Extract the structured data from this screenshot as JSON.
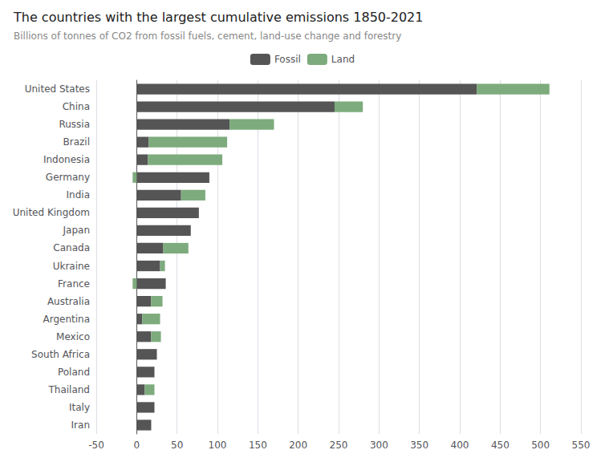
{
  "chart_data": {
    "type": "bar",
    "orientation": "horizontal",
    "stacked": true,
    "title": "The countries with the largest cumulative emissions 1850-2021",
    "subtitle": "Billions of tonnes of CO2 from fossil fuels, cement, land-use change and forestry",
    "categories": [
      "United States",
      "China",
      "Russia",
      "Brazil",
      "Indonesia",
      "Germany",
      "India",
      "United Kingdom",
      "Japan",
      "Canada",
      "Ukraine",
      "France",
      "Australia",
      "Argentina",
      "Mexico",
      "South Africa",
      "Poland",
      "Thailand",
      "Italy",
      "Iran"
    ],
    "series": [
      {
        "name": "Fossil",
        "color": "#555555",
        "values": [
          421,
          245,
          115,
          15,
          14,
          90,
          55,
          77,
          67,
          33,
          29,
          36,
          18,
          7,
          18,
          25,
          22,
          10,
          22,
          18
        ]
      },
      {
        "name": "Land",
        "color": "#7dab7d",
        "values": [
          90,
          35,
          55,
          97,
          92,
          -5,
          30,
          0,
          0,
          31,
          6,
          -5,
          14,
          22,
          12,
          0,
          0,
          12,
          0,
          0
        ]
      }
    ],
    "xlim": [
      -50,
      550
    ],
    "xticks": [
      -50,
      0,
      50,
      100,
      150,
      200,
      250,
      300,
      350,
      400,
      450,
      500,
      550
    ],
    "grid": true,
    "legend": "top"
  }
}
